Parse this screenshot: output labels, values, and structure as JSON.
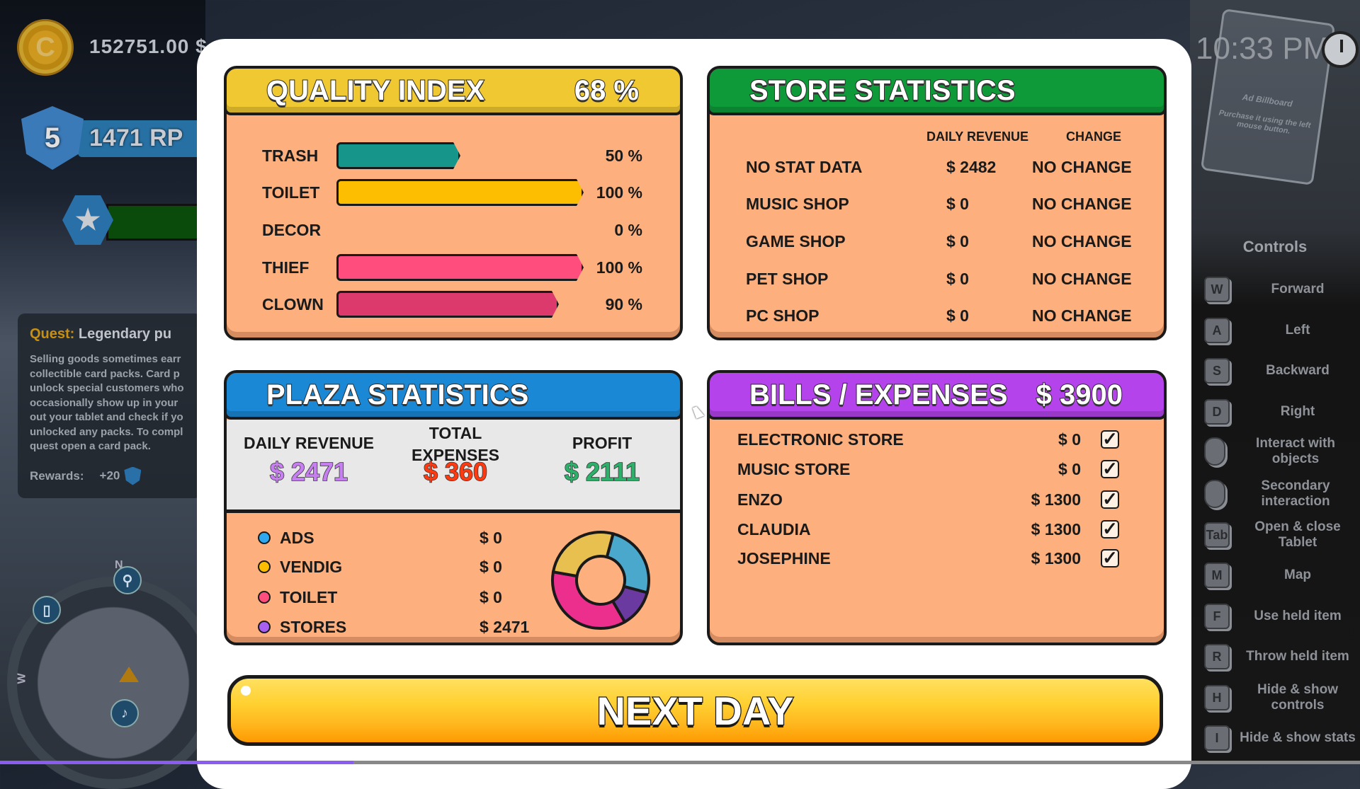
{
  "hud": {
    "coin_symbol": "C",
    "money": "152751.00 $",
    "level": "5",
    "rp": "1471 RP",
    "star_icon": "star-icon",
    "quest": {
      "label": "Quest:",
      "title": "Legendary pu",
      "text": "Selling goods sometimes earr\ncollectible card packs. Card p\nunlock special customers who\noccasionally show up in your\nout your tablet and check if yo\nunlocked any packs. To compl\nquest open a card pack.",
      "rewards_label": "Rewards:",
      "rewards_value": "+20"
    },
    "minimap": {
      "north": "N",
      "west": "W"
    },
    "time": "10:33 PM",
    "billboard": {
      "title": "Ad Billboard",
      "text": "Purchase it using the left mouse button."
    }
  },
  "controls": {
    "title": "Controls",
    "items": [
      {
        "key": "W",
        "label": "Forward"
      },
      {
        "key": "A",
        "label": "Left"
      },
      {
        "key": "S",
        "label": "Backward"
      },
      {
        "key": "D",
        "label": "Right"
      },
      {
        "key": "",
        "icon": "mouse-left-icon",
        "label": "Interact with\nobjects"
      },
      {
        "key": "",
        "icon": "mouse-right-icon",
        "label": "Secondary\ninteraction"
      },
      {
        "key": "Tab",
        "label": "Open & close\nTablet"
      },
      {
        "key": "M",
        "label": "Map"
      },
      {
        "key": "F",
        "label": "Use held item"
      },
      {
        "key": "R",
        "label": "Throw held item"
      },
      {
        "key": "H",
        "label": "Hide & show\ncontrols"
      },
      {
        "key": "I",
        "label": "Hide & show stats"
      }
    ]
  },
  "quality": {
    "title": "QUALITY INDEX",
    "value": "68 %",
    "header_color": "#f0c832",
    "items": [
      {
        "label": "TRASH",
        "value": 50,
        "pct": "50 %",
        "color": "#16958a"
      },
      {
        "label": "TOILET",
        "value": 100,
        "pct": "100 %",
        "color": "#fdbd00"
      },
      {
        "label": "DECOR",
        "value": 0,
        "pct": "0 %",
        "color": "#888888"
      },
      {
        "label": "THIEF",
        "value": 100,
        "pct": "100 %",
        "color": "#ff4d7d"
      },
      {
        "label": "CLOWN",
        "value": 90,
        "pct": "90 %",
        "color": "#dc3a6c"
      }
    ]
  },
  "store": {
    "title": "STORE STATISTICS",
    "header_color": "#0f9a3a",
    "col_revenue": "DAILY REVENUE",
    "col_change": "CHANGE",
    "rows": [
      {
        "name": "NO STAT DATA",
        "revenue": "$ 2482",
        "change": "NO CHANGE"
      },
      {
        "name": "MUSIC SHOP",
        "revenue": "$ 0",
        "change": "NO CHANGE"
      },
      {
        "name": "GAME SHOP",
        "revenue": "$ 0",
        "change": "NO CHANGE"
      },
      {
        "name": "PET SHOP",
        "revenue": "$ 0",
        "change": "NO CHANGE"
      },
      {
        "name": "PC SHOP",
        "revenue": "$ 0",
        "change": "NO CHANGE"
      }
    ]
  },
  "plaza": {
    "title": "PLAZA STATISTICS",
    "header_color": "#1a88d4",
    "daily_revenue_label": "DAILY REVENUE",
    "daily_revenue": "$ 2471",
    "daily_revenue_color": "#c77ef0",
    "total_expenses_label_1": "TOTAL",
    "total_expenses_label_2": "EXPENSES",
    "total_expenses": "$ 360",
    "total_expenses_color": "#ff3a10",
    "profit_label": "PROFIT",
    "profit": "$ 2111",
    "profit_color": "#2db06a",
    "items": [
      {
        "label": "ADS",
        "value": "$ 0",
        "color": "#2fa8f0"
      },
      {
        "label": "VENDIG",
        "value": "$ 0",
        "color": "#fdbd00"
      },
      {
        "label": "TOILET",
        "value": "$ 0",
        "color": "#ff4d7d"
      },
      {
        "label": "STORES",
        "value": "$ 2471",
        "color": "#a860f0"
      }
    ],
    "donut_colors": [
      "#4aa8cc",
      "#6a3aa0",
      "#ec2f8c",
      "#e8c050"
    ]
  },
  "bills": {
    "title": "BILLS / EXPENSES",
    "total": "$ 3900",
    "header_color": "#b443ec",
    "rows": [
      {
        "name": "ELECTRONIC STORE",
        "amount": "$ 0",
        "checked": true
      },
      {
        "name": "MUSIC STORE",
        "amount": "$ 0",
        "checked": true
      },
      {
        "name": "ENZO",
        "amount": "$ 1300",
        "checked": true
      },
      {
        "name": "CLAUDIA",
        "amount": "$ 1300",
        "checked": true
      },
      {
        "name": "JOSEPHINE",
        "amount": "$ 1300",
        "checked": true
      }
    ]
  },
  "next_day_label": "NEXT DAY",
  "video_progress_percent": 26
}
